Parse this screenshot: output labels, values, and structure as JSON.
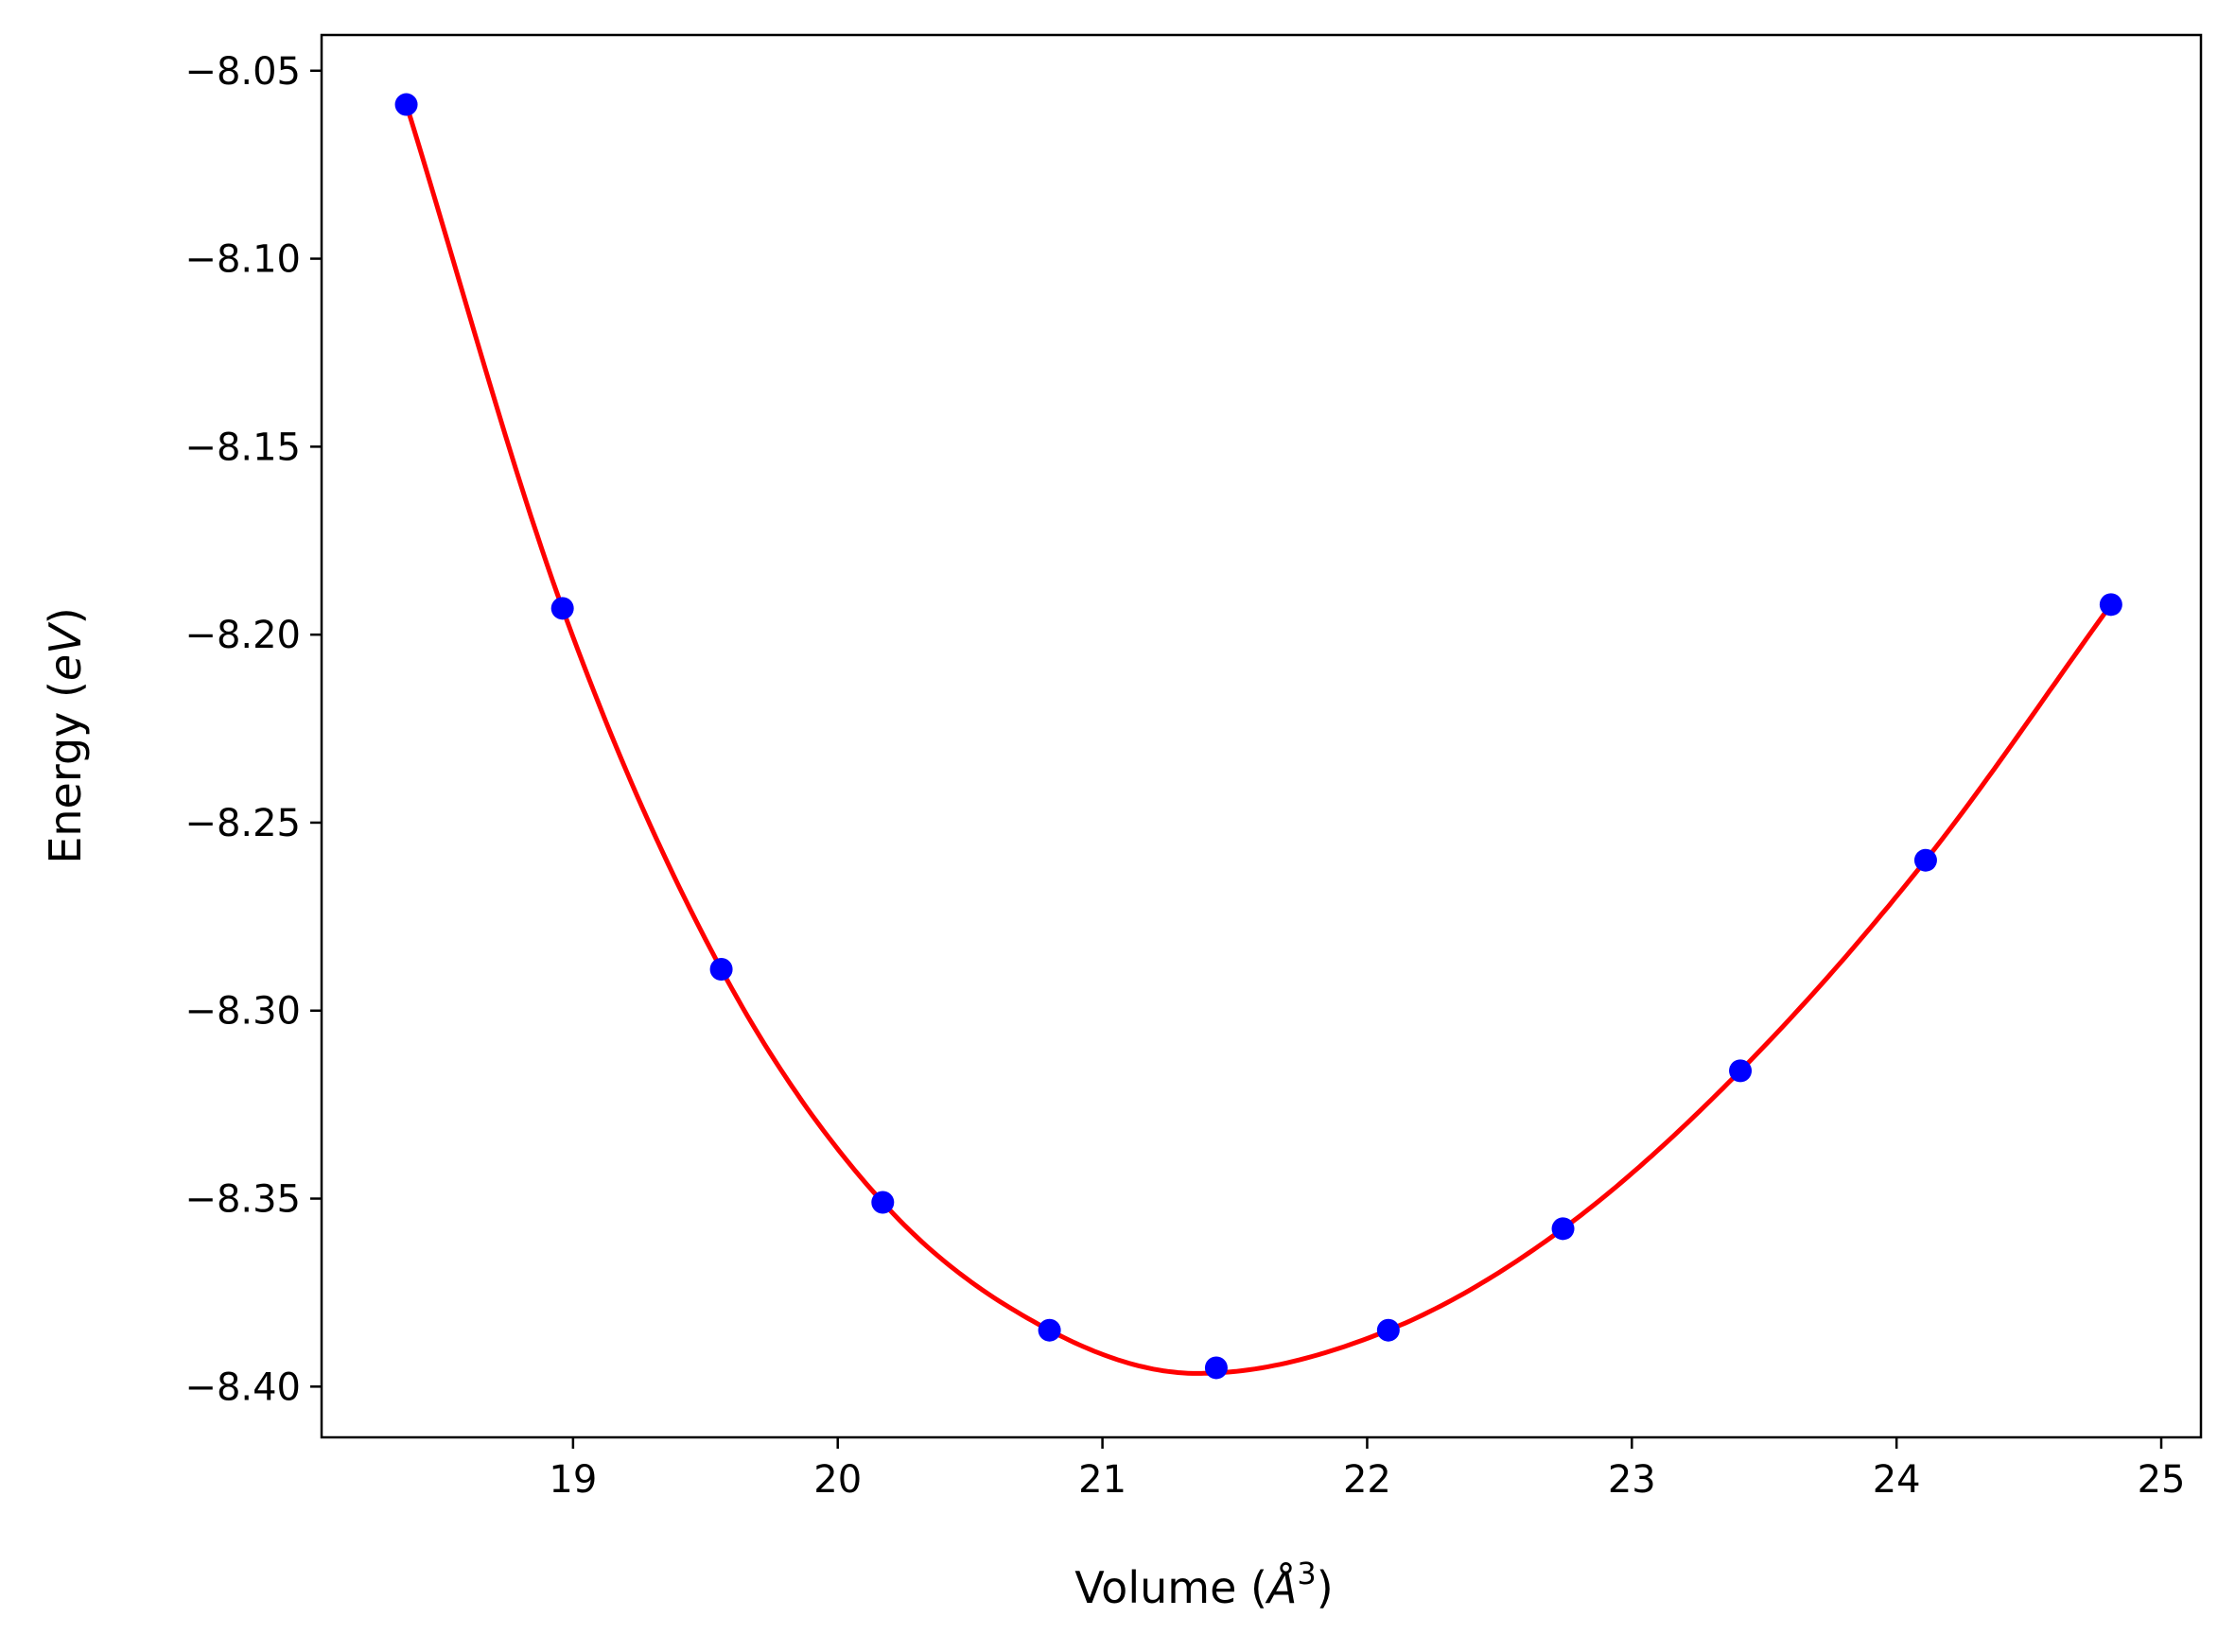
{
  "chart_data": {
    "type": "scatter",
    "xlabel_text": "Volume (",
    "xlabel_symbol": "Å",
    "xlabel_exp": "3",
    "xlabel_close": ")",
    "ylabel_text": "Energy (",
    "ylabel_unit": "eV",
    "ylabel_close": ")",
    "xlim": [
      18.05,
      25.15
    ],
    "ylim": [
      -8.4135,
      -8.0405
    ],
    "x_ticks": [
      19,
      20,
      21,
      22,
      23,
      24,
      25
    ],
    "y_ticks": [
      -8.05,
      -8.1,
      -8.15,
      -8.2,
      -8.25,
      -8.3,
      -8.35,
      -8.4
    ],
    "x_tick_labels": [
      "19",
      "20",
      "21",
      "22",
      "23",
      "24",
      "25"
    ],
    "y_tick_labels": [
      "−8.05",
      "−8.10",
      "−8.15",
      "−8.20",
      "−8.25",
      "−8.30",
      "−8.35",
      "−8.40"
    ],
    "grid": false,
    "points": {
      "color": "#0000ff",
      "x": [
        18.37,
        18.96,
        19.56,
        20.17,
        20.8,
        21.43,
        22.08,
        22.74,
        23.41,
        24.11,
        24.81
      ],
      "y": [
        -8.059,
        -8.193,
        -8.289,
        -8.351,
        -8.385,
        -8.395,
        -8.385,
        -8.358,
        -8.316,
        -8.26,
        -8.192
      ]
    },
    "fit_curve": {
      "color": "#ff0000",
      "x": [
        18.37,
        18.96,
        19.56,
        20.17,
        20.8,
        21.36,
        22.08,
        22.74,
        23.41,
        24.11,
        24.81
      ],
      "y": [
        -8.059,
        -8.193,
        -8.289,
        -8.351,
        -8.385,
        -8.3965,
        -8.385,
        -8.358,
        -8.316,
        -8.26,
        -8.192
      ]
    }
  }
}
